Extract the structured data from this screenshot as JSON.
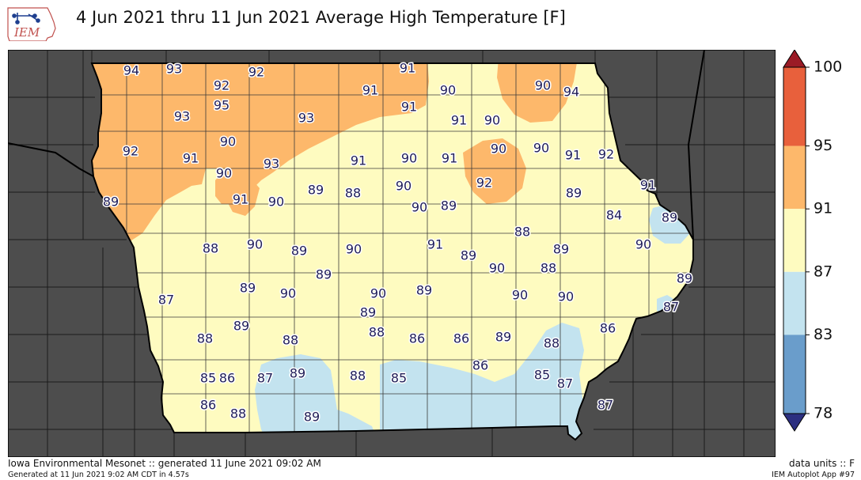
{
  "title": "4 Jun 2021 thru 11 Jun 2021 Average High Temperature [F]",
  "logo": {
    "text": "IEM",
    "icon": "iem-logo-icon"
  },
  "legend": {
    "ticks": [
      "100",
      "95",
      "91",
      "87",
      "83",
      "78"
    ],
    "bins": [
      {
        "from": 95,
        "to": 100,
        "color": "#e8603c"
      },
      {
        "from": 91,
        "to": 95,
        "color": "#fdb86b"
      },
      {
        "from": 87,
        "to": 91,
        "color": "#fefbc0"
      },
      {
        "from": 83,
        "to": 87,
        "color": "#c3e3ef"
      },
      {
        "from": 78,
        "to": 83,
        "color": "#6a9dcb"
      }
    ],
    "over_color": "#9b1b26",
    "under_color": "#2c2f80"
  },
  "map": {
    "region": "Iowa",
    "background_color": "#4d4d4d",
    "values": [
      "94",
      "93",
      "92",
      "92",
      "91",
      "95",
      "91",
      "90",
      "93",
      "93",
      "91",
      "90",
      "94",
      "90",
      "91",
      "90",
      "92",
      "91",
      "93",
      "90",
      "91",
      "90",
      "91",
      "90",
      "90",
      "91",
      "92",
      "92",
      "91",
      "90",
      "89",
      "88",
      "90",
      "90",
      "89",
      "89",
      "91",
      "89",
      "84",
      "89",
      "88",
      "90",
      "89",
      "90",
      "91",
      "89",
      "88",
      "89",
      "90",
      "89",
      "90",
      "88",
      "89",
      "89",
      "90",
      "90",
      "89",
      "87",
      "90",
      "90",
      "89",
      "87",
      "89",
      "88",
      "88",
      "88",
      "86",
      "86",
      "89",
      "86",
      "88",
      "86",
      "87",
      "89",
      "88",
      "85",
      "85",
      "85",
      "87",
      "86",
      "87",
      "88",
      "89",
      "86"
    ]
  },
  "footer": {
    "left_line1": "Iowa Environmental Mesonet :: generated 11 June 2021 09:02 AM",
    "left_line2": "Generated at 11 Jun 2021 9:02 AM CDT in 4.57s",
    "right_line1": "data units :: F",
    "right_line2": "IEM Autoplot App #97"
  }
}
